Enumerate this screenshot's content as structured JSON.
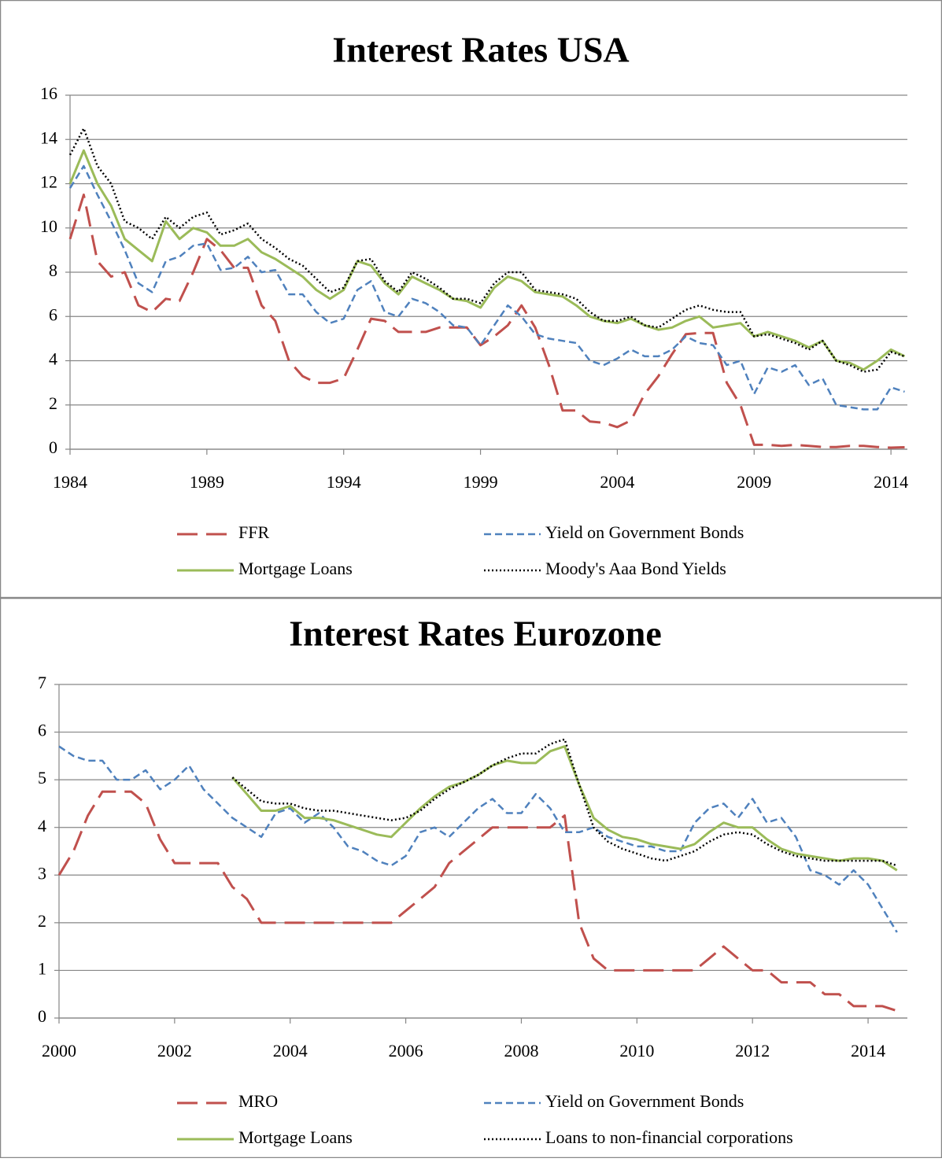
{
  "chart_data": [
    {
      "type": "line",
      "title": "Interest Rates USA",
      "x": [
        1984,
        1984.5,
        1985,
        1985.5,
        1986,
        1986.5,
        1987,
        1987.5,
        1988,
        1988.5,
        1989,
        1989.5,
        1990,
        1990.5,
        1991,
        1991.5,
        1992,
        1992.5,
        1993,
        1993.5,
        1994,
        1994.5,
        1995,
        1995.5,
        1996,
        1996.5,
        1997,
        1997.5,
        1998,
        1998.5,
        1999,
        1999.5,
        2000,
        2000.5,
        2001,
        2001.5,
        2002,
        2002.5,
        2003,
        2003.5,
        2004,
        2004.5,
        2005,
        2005.5,
        2006,
        2006.5,
        2007,
        2007.5,
        2008,
        2008.5,
        2009,
        2009.5,
        2010,
        2010.5,
        2011,
        2011.5,
        2012,
        2012.5,
        2013,
        2013.5,
        2014,
        2014.5
      ],
      "xlim": [
        1984,
        2014.6
      ],
      "xticks": [
        1984,
        1989,
        1994,
        1999,
        2004,
        2009,
        2014
      ],
      "ylim": [
        0,
        16
      ],
      "yticks": [
        0,
        2,
        4,
        6,
        8,
        10,
        12,
        14,
        16
      ],
      "grid": true,
      "series": [
        {
          "name": "FFR",
          "color": "#c0504d",
          "dash": "long-dash",
          "values": [
            9.5,
            11.5,
            8.5,
            7.8,
            8.0,
            6.5,
            6.2,
            6.8,
            6.7,
            8.0,
            9.5,
            9.0,
            8.2,
            8.2,
            6.5,
            5.8,
            4.0,
            3.3,
            3.0,
            3.0,
            3.2,
            4.5,
            5.9,
            5.8,
            5.3,
            5.3,
            5.3,
            5.5,
            5.5,
            5.5,
            4.7,
            5.1,
            5.6,
            6.5,
            5.5,
            3.8,
            1.75,
            1.75,
            1.25,
            1.2,
            1.0,
            1.3,
            2.5,
            3.3,
            4.3,
            5.2,
            5.25,
            5.25,
            3.0,
            2.0,
            0.2,
            0.2,
            0.15,
            0.2,
            0.15,
            0.1,
            0.1,
            0.15,
            0.15,
            0.1,
            0.07,
            0.09
          ]
        },
        {
          "name": "Yield on Government Bonds",
          "color": "#4f81bd",
          "dash": "dash",
          "values": [
            11.8,
            12.8,
            11.5,
            10.3,
            9.0,
            7.5,
            7.1,
            8.5,
            8.7,
            9.2,
            9.3,
            8.1,
            8.2,
            8.7,
            8.0,
            8.1,
            7.0,
            7.0,
            6.2,
            5.7,
            5.9,
            7.2,
            7.6,
            6.2,
            6.0,
            6.8,
            6.6,
            6.2,
            5.6,
            5.5,
            4.7,
            5.6,
            6.5,
            6.0,
            5.2,
            5.0,
            4.9,
            4.8,
            4.0,
            3.8,
            4.1,
            4.5,
            4.2,
            4.2,
            4.5,
            5.1,
            4.8,
            4.7,
            3.8,
            4.0,
            2.5,
            3.7,
            3.5,
            3.8,
            2.9,
            3.2,
            2.0,
            1.9,
            1.8,
            1.8,
            2.8,
            2.6
          ]
        },
        {
          "name": "Mortgage Loans",
          "color": "#9bbb59",
          "dash": "solid",
          "values": [
            12.0,
            13.5,
            12.0,
            11.0,
            9.5,
            9.0,
            8.5,
            10.3,
            9.5,
            10.0,
            9.8,
            9.2,
            9.2,
            9.5,
            8.9,
            8.6,
            8.2,
            7.8,
            7.2,
            6.8,
            7.2,
            8.5,
            8.3,
            7.5,
            7.0,
            7.8,
            7.5,
            7.2,
            6.8,
            6.7,
            6.4,
            7.3,
            7.8,
            7.6,
            7.1,
            7.0,
            6.9,
            6.5,
            6.0,
            5.8,
            5.7,
            5.9,
            5.6,
            5.4,
            5.5,
            5.8,
            6.0,
            5.5,
            5.6,
            5.7,
            5.1,
            5.3,
            5.1,
            4.9,
            4.6,
            4.9,
            4.0,
            3.9,
            3.6,
            4.0,
            4.5,
            4.2
          ]
        },
        {
          "name": "Moody's Aaa Bond Yields",
          "color": "#000000",
          "dash": "dot",
          "values": [
            13.3,
            14.5,
            12.8,
            12.0,
            10.3,
            10.0,
            9.5,
            10.5,
            10.0,
            10.5,
            10.7,
            9.7,
            9.9,
            10.2,
            9.5,
            9.1,
            8.6,
            8.3,
            7.7,
            7.1,
            7.3,
            8.5,
            8.6,
            7.6,
            7.1,
            8.0,
            7.7,
            7.3,
            6.8,
            6.8,
            6.6,
            7.5,
            8.0,
            8.0,
            7.2,
            7.1,
            7.0,
            6.8,
            6.2,
            5.8,
            5.8,
            6.0,
            5.6,
            5.5,
            5.9,
            6.3,
            6.5,
            6.3,
            6.2,
            6.2,
            5.1,
            5.2,
            5.0,
            4.8,
            4.5,
            4.9,
            4.0,
            3.8,
            3.5,
            3.6,
            4.4,
            4.2
          ]
        }
      ]
    },
    {
      "type": "line",
      "title": "Interest Rates Eurozone",
      "x": [
        2000,
        2000.25,
        2000.5,
        2000.75,
        2001,
        2001.25,
        2001.5,
        2001.75,
        2002,
        2002.25,
        2002.5,
        2002.75,
        2003,
        2003.25,
        2003.5,
        2003.75,
        2004,
        2004.25,
        2004.5,
        2004.75,
        2005,
        2005.25,
        2005.5,
        2005.75,
        2006,
        2006.25,
        2006.5,
        2006.75,
        2007,
        2007.25,
        2007.5,
        2007.75,
        2008,
        2008.25,
        2008.5,
        2008.75,
        2009,
        2009.25,
        2009.5,
        2009.75,
        2010,
        2010.25,
        2010.5,
        2010.75,
        2011,
        2011.25,
        2011.5,
        2011.75,
        2012,
        2012.25,
        2012.5,
        2012.75,
        2013,
        2013.25,
        2013.5,
        2013.75,
        2014,
        2014.25,
        2014.5
      ],
      "xlim": [
        2000,
        2014.68
      ],
      "xticks": [
        2000,
        2002,
        2004,
        2006,
        2008,
        2010,
        2012,
        2014
      ],
      "ylim": [
        0,
        7
      ],
      "yticks": [
        0,
        1,
        2,
        3,
        4,
        5,
        6,
        7
      ],
      "grid": true,
      "series": [
        {
          "name": "MRO",
          "color": "#c0504d",
          "dash": "long-dash",
          "values": [
            3.0,
            3.5,
            4.25,
            4.75,
            4.75,
            4.75,
            4.5,
            3.75,
            3.25,
            3.25,
            3.25,
            3.25,
            2.75,
            2.5,
            2.0,
            2.0,
            2,
            2,
            2,
            2,
            2,
            2,
            2,
            2,
            2.25,
            2.5,
            2.75,
            3.25,
            3.5,
            3.75,
            4.0,
            4.0,
            4.0,
            4.0,
            4.0,
            4.25,
            2.0,
            1.25,
            1.0,
            1.0,
            1,
            1,
            1,
            1,
            1.0,
            1.25,
            1.5,
            1.25,
            1.0,
            1.0,
            0.75,
            0.75,
            0.75,
            0.5,
            0.5,
            0.25,
            0.25,
            0.25,
            0.15
          ]
        },
        {
          "name": "Yield on Government Bonds",
          "color": "#4f81bd",
          "dash": "dash",
          "values": [
            5.7,
            5.5,
            5.4,
            5.4,
            5.0,
            5.0,
            5.2,
            4.8,
            5.0,
            5.3,
            4.8,
            4.5,
            4.2,
            4.0,
            3.8,
            4.3,
            4.4,
            4.1,
            4.3,
            4.0,
            3.6,
            3.5,
            3.3,
            3.2,
            3.4,
            3.9,
            4.0,
            3.8,
            4.1,
            4.4,
            4.6,
            4.3,
            4.3,
            4.7,
            4.4,
            3.9,
            3.9,
            4.0,
            3.8,
            3.7,
            3.6,
            3.6,
            3.5,
            3.5,
            4.1,
            4.4,
            4.5,
            4.2,
            4.6,
            4.1,
            4.2,
            3.8,
            3.1,
            3.0,
            2.8,
            3.1,
            2.8,
            2.3,
            1.8
          ]
        },
        {
          "name": "Mortgage Loans",
          "color": "#9bbb59",
          "dash": "solid",
          "values": [
            null,
            null,
            null,
            null,
            null,
            null,
            null,
            null,
            null,
            null,
            null,
            null,
            5.05,
            4.7,
            4.35,
            4.35,
            4.45,
            4.2,
            4.2,
            4.15,
            4.05,
            3.95,
            3.85,
            3.8,
            4.1,
            4.4,
            4.65,
            4.85,
            4.95,
            5.1,
            5.3,
            5.4,
            5.35,
            5.35,
            5.6,
            5.7,
            4.9,
            4.2,
            3.95,
            3.8,
            3.75,
            3.65,
            3.6,
            3.55,
            3.65,
            3.9,
            4.1,
            4.0,
            4.0,
            3.75,
            3.55,
            3.45,
            3.4,
            3.35,
            3.3,
            3.35,
            3.35,
            3.3,
            3.1
          ]
        },
        {
          "name": "Loans to non-financial corporations",
          "color": "#000000",
          "dash": "dot",
          "values": [
            null,
            null,
            null,
            null,
            null,
            null,
            null,
            null,
            null,
            null,
            null,
            null,
            5.05,
            4.8,
            4.55,
            4.5,
            4.5,
            4.4,
            4.35,
            4.35,
            4.3,
            4.25,
            4.2,
            4.15,
            4.2,
            4.35,
            4.6,
            4.8,
            4.95,
            5.1,
            5.3,
            5.45,
            5.55,
            5.55,
            5.75,
            5.85,
            4.9,
            4.0,
            3.7,
            3.55,
            3.45,
            3.35,
            3.3,
            3.4,
            3.5,
            3.7,
            3.85,
            3.9,
            3.85,
            3.65,
            3.5,
            3.4,
            3.35,
            3.3,
            3.3,
            3.3,
            3.3,
            3.3,
            3.2
          ]
        }
      ]
    }
  ]
}
